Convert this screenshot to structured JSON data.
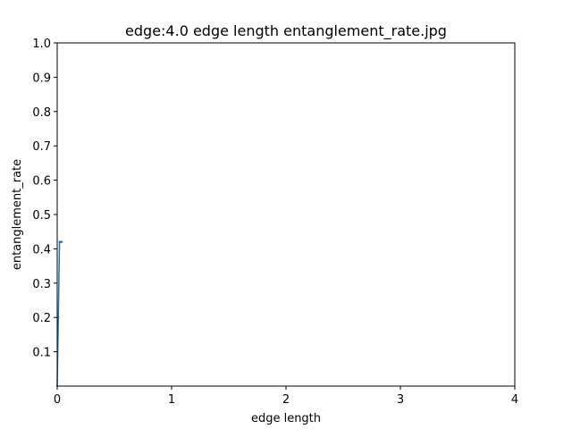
{
  "chart_data": {
    "type": "line",
    "title": "edge:4.0 edge length entanglement_rate.jpg",
    "xlabel": "edge length",
    "ylabel": "entanglement_rate",
    "xlim": [
      0,
      4
    ],
    "ylim": [
      0,
      1
    ],
    "x_ticks": [
      "0",
      "1",
      "2",
      "3",
      "4"
    ],
    "y_ticks": [
      "0.1",
      "0.2",
      "0.3",
      "0.4",
      "0.5",
      "0.6",
      "0.7",
      "0.8",
      "0.9",
      "1.0"
    ],
    "grid": false,
    "legend": "none",
    "series": [
      {
        "color": "#1f77b4",
        "x": [
          0.0,
          0.01,
          0.02,
          0.03,
          0.04
        ],
        "y": [
          0.0,
          0.2,
          0.42,
          0.42,
          0.42
        ]
      }
    ]
  }
}
